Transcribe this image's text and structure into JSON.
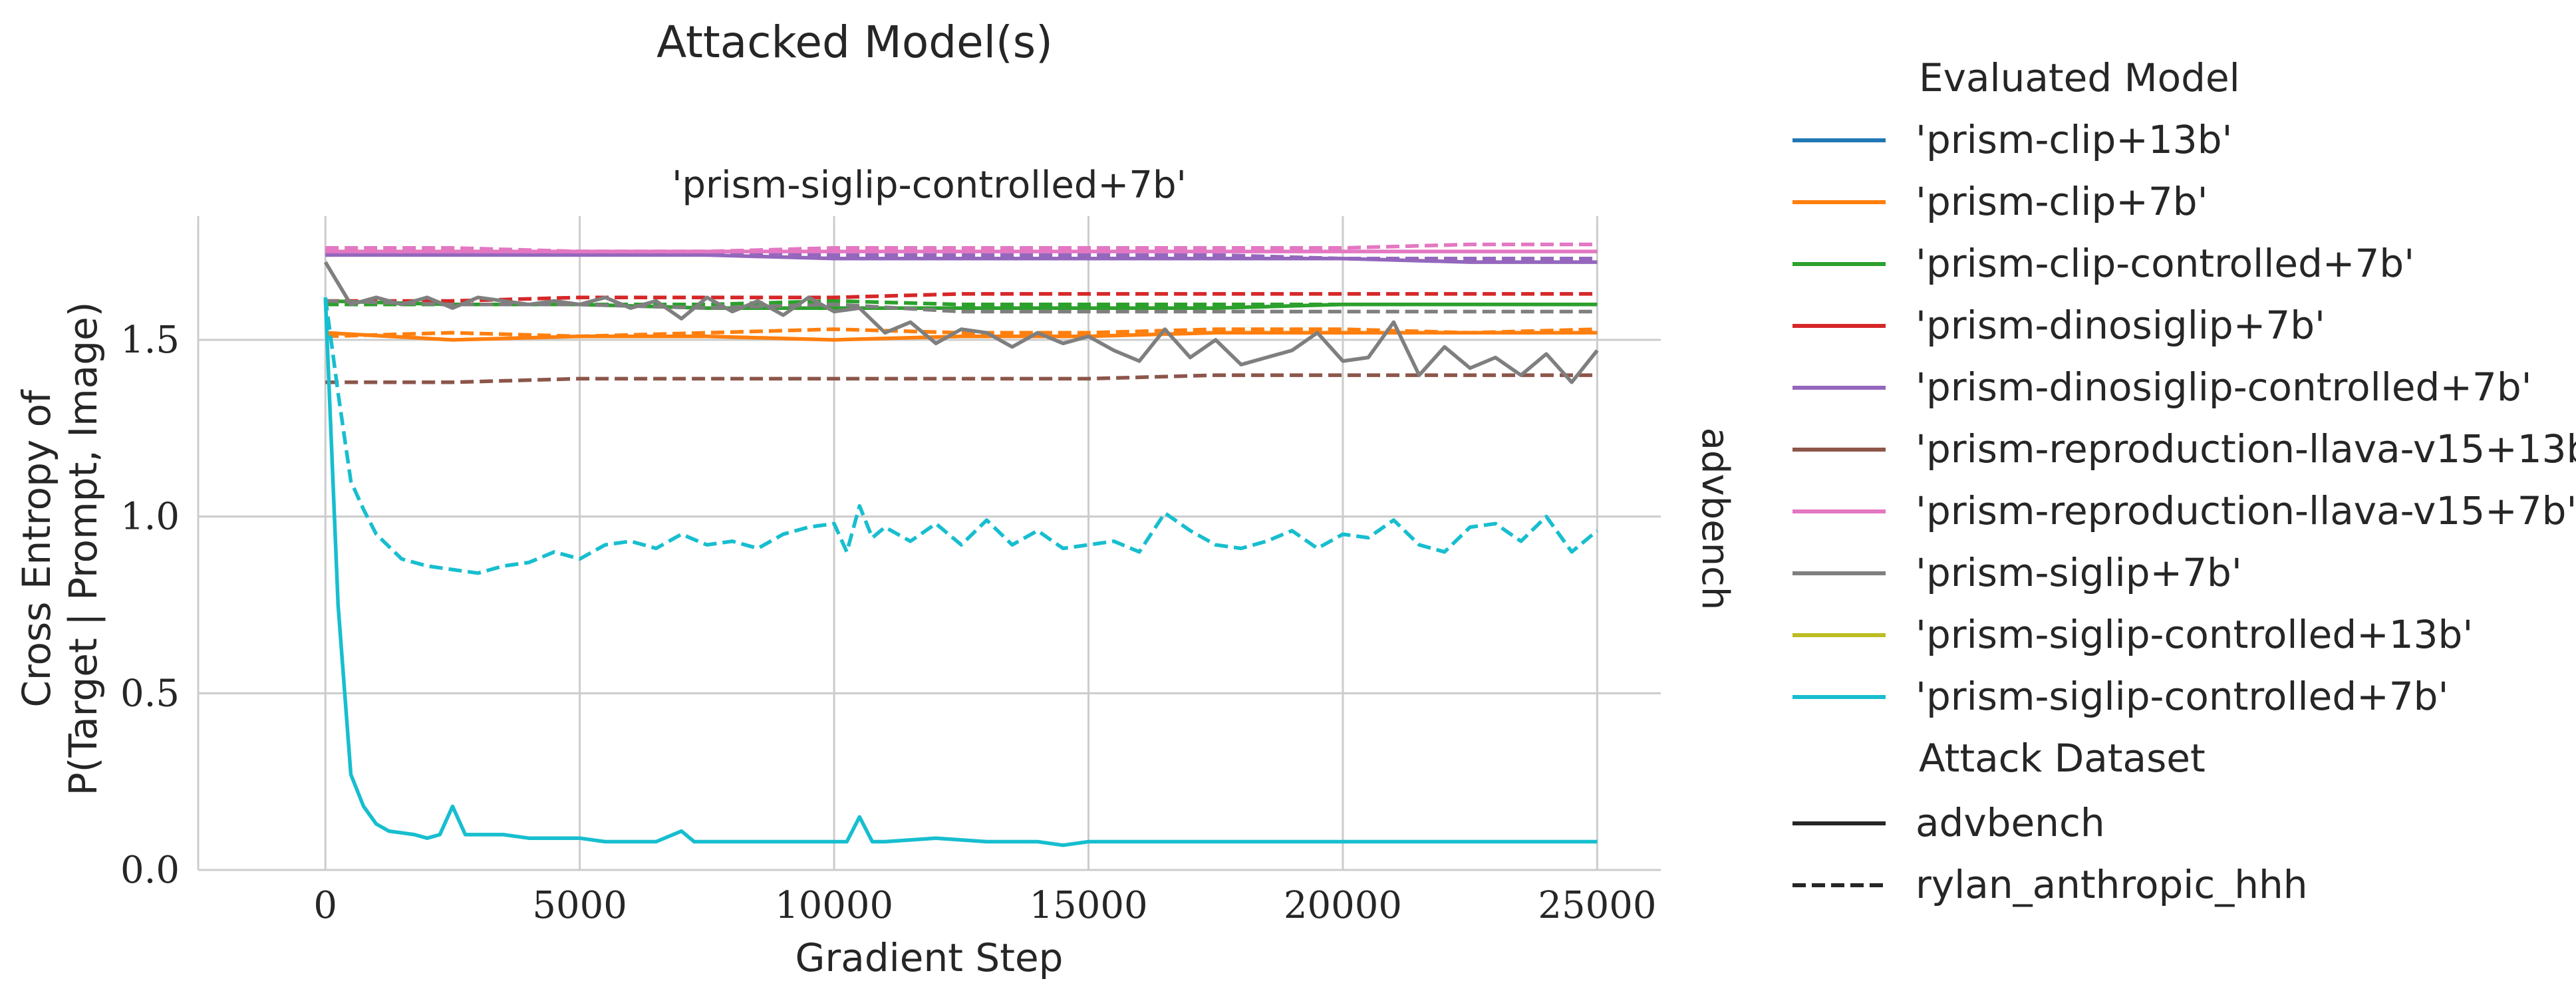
{
  "figure": {
    "suptitle": "Attacked Model(s)",
    "facet_title": "'prism-siglip-controlled+7b'",
    "row_label": "advbench"
  },
  "legend": {
    "hue_title": "Evaluated Model",
    "style_title": "Attack Dataset",
    "style_entries": [
      {
        "label": "advbench",
        "dash": "solid"
      },
      {
        "label": "rylan_anthropic_hhh",
        "dash": "dashed"
      }
    ]
  },
  "chart_data": {
    "type": "line",
    "xlabel": "Gradient Step",
    "ylabel_lines": [
      "Cross Entropy of",
      "P(Target | Prompt, Image)"
    ],
    "xlim": [
      -2500,
      26250
    ],
    "ylim": [
      0,
      1.85
    ],
    "xticks": [
      0,
      5000,
      10000,
      15000,
      20000,
      25000
    ],
    "yticks": [
      0.0,
      0.5,
      1.0,
      1.5
    ],
    "grid": true,
    "legend_position": "right",
    "models": [
      {
        "name": "'prism-clip+13b'",
        "color": "#1f77b4"
      },
      {
        "name": "'prism-clip+7b'",
        "color": "#ff7f0e"
      },
      {
        "name": "'prism-clip-controlled+7b'",
        "color": "#2ca02c"
      },
      {
        "name": "'prism-dinosiglip+7b'",
        "color": "#d62728"
      },
      {
        "name": "'prism-dinosiglip-controlled+7b'",
        "color": "#9467bd"
      },
      {
        "name": "'prism-reproduction-llava-v15+13b'",
        "color": "#8c564b"
      },
      {
        "name": "'prism-reproduction-llava-v15+7b'",
        "color": "#e377c2"
      },
      {
        "name": "'prism-siglip+7b'",
        "color": "#7f7f7f"
      },
      {
        "name": "'prism-siglip-controlled+13b'",
        "color": "#bcbd22"
      },
      {
        "name": "'prism-siglip-controlled+7b'",
        "color": "#17becf"
      }
    ],
    "series": [
      {
        "model": "'prism-clip+7b'",
        "dataset": "advbench",
        "x": [
          0,
          2500,
          5000,
          7500,
          10000,
          12500,
          15000,
          17500,
          20000,
          22500,
          25000
        ],
        "y": [
          1.52,
          1.5,
          1.51,
          1.51,
          1.5,
          1.51,
          1.51,
          1.52,
          1.52,
          1.52,
          1.52
        ]
      },
      {
        "model": "'prism-clip+7b'",
        "dataset": "rylan_anthropic_hhh",
        "x": [
          0,
          2500,
          5000,
          7500,
          10000,
          12500,
          15000,
          17500,
          20000,
          22500,
          25000
        ],
        "y": [
          1.51,
          1.52,
          1.51,
          1.52,
          1.53,
          1.52,
          1.52,
          1.53,
          1.53,
          1.52,
          1.53
        ]
      },
      {
        "model": "'prism-clip-controlled+7b'",
        "dataset": "advbench",
        "x": [
          0,
          2500,
          5000,
          7500,
          10000,
          12500,
          15000,
          17500,
          20000,
          22500,
          25000
        ],
        "y": [
          1.61,
          1.6,
          1.6,
          1.59,
          1.59,
          1.59,
          1.59,
          1.59,
          1.6,
          1.6,
          1.6
        ]
      },
      {
        "model": "'prism-clip-controlled+7b'",
        "dataset": "rylan_anthropic_hhh",
        "x": [
          0,
          2500,
          5000,
          7500,
          10000,
          12500,
          15000,
          17500,
          20000,
          22500,
          25000
        ],
        "y": [
          1.6,
          1.6,
          1.6,
          1.6,
          1.61,
          1.6,
          1.6,
          1.6,
          1.6,
          1.6,
          1.6
        ]
      },
      {
        "model": "'prism-dinosiglip+7b'",
        "dataset": "rylan_anthropic_hhh",
        "x": [
          0,
          2500,
          5000,
          7500,
          10000,
          12500,
          15000,
          17500,
          20000,
          22500,
          25000
        ],
        "y": [
          1.61,
          1.61,
          1.62,
          1.62,
          1.62,
          1.63,
          1.63,
          1.63,
          1.63,
          1.63,
          1.63
        ]
      },
      {
        "model": "'prism-dinosiglip-controlled+7b'",
        "dataset": "advbench",
        "x": [
          0,
          2500,
          5000,
          7500,
          10000,
          12500,
          15000,
          17500,
          20000,
          22500,
          25000
        ],
        "y": [
          1.74,
          1.74,
          1.74,
          1.74,
          1.73,
          1.73,
          1.73,
          1.73,
          1.73,
          1.72,
          1.72
        ]
      },
      {
        "model": "'prism-dinosiglip-controlled+7b'",
        "dataset": "rylan_anthropic_hhh",
        "x": [
          0,
          2500,
          5000,
          7500,
          10000,
          12500,
          15000,
          17500,
          20000,
          22500,
          25000
        ],
        "y": [
          1.75,
          1.75,
          1.75,
          1.75,
          1.74,
          1.74,
          1.74,
          1.74,
          1.73,
          1.73,
          1.73
        ]
      },
      {
        "model": "'prism-reproduction-llava-v15+13b'",
        "dataset": "rylan_anthropic_hhh",
        "x": [
          0,
          2500,
          5000,
          7500,
          10000,
          12500,
          15000,
          17500,
          20000,
          22500,
          25000
        ],
        "y": [
          1.38,
          1.38,
          1.39,
          1.39,
          1.39,
          1.39,
          1.39,
          1.4,
          1.4,
          1.4,
          1.4
        ]
      },
      {
        "model": "'prism-reproduction-llava-v15+7b'",
        "dataset": "advbench",
        "x": [
          0,
          2500,
          5000,
          7500,
          10000,
          12500,
          15000,
          17500,
          20000,
          22500,
          25000
        ],
        "y": [
          1.75,
          1.75,
          1.75,
          1.75,
          1.75,
          1.75,
          1.75,
          1.75,
          1.75,
          1.75,
          1.75
        ]
      },
      {
        "model": "'prism-reproduction-llava-v15+7b'",
        "dataset": "rylan_anthropic_hhh",
        "x": [
          0,
          2500,
          5000,
          7500,
          10000,
          12500,
          15000,
          17500,
          20000,
          22500,
          25000
        ],
        "y": [
          1.76,
          1.76,
          1.75,
          1.75,
          1.76,
          1.76,
          1.76,
          1.76,
          1.76,
          1.77,
          1.77
        ]
      },
      {
        "model": "'prism-siglip+7b'",
        "dataset": "advbench",
        "x": [
          0,
          500,
          1000,
          1500,
          2000,
          2500,
          3000,
          3500,
          4000,
          4500,
          5000,
          5500,
          6000,
          6500,
          7000,
          7500,
          8000,
          8500,
          9000,
          9500,
          10000,
          10500,
          11000,
          11500,
          12000,
          12500,
          13000,
          13500,
          14000,
          14500,
          15000,
          15500,
          16000,
          16500,
          17000,
          17500,
          18000,
          18500,
          19000,
          19500,
          20000,
          20500,
          21000,
          21500,
          22000,
          22500,
          23000,
          23500,
          24000,
          24500,
          25000
        ],
        "y": [
          1.72,
          1.6,
          1.62,
          1.6,
          1.62,
          1.59,
          1.62,
          1.61,
          1.6,
          1.61,
          1.6,
          1.62,
          1.59,
          1.61,
          1.56,
          1.62,
          1.58,
          1.61,
          1.57,
          1.62,
          1.58,
          1.59,
          1.52,
          1.55,
          1.49,
          1.53,
          1.52,
          1.48,
          1.52,
          1.49,
          1.51,
          1.47,
          1.44,
          1.53,
          1.45,
          1.5,
          1.43,
          1.45,
          1.47,
          1.52,
          1.44,
          1.45,
          1.55,
          1.4,
          1.48,
          1.42,
          1.45,
          1.4,
          1.46,
          1.38,
          1.47
        ]
      },
      {
        "model": "'prism-siglip+7b'",
        "dataset": "rylan_anthropic_hhh",
        "x": [
          0,
          2500,
          5000,
          7500,
          10000,
          12500,
          15000,
          17500,
          20000,
          22500,
          25000
        ],
        "y": [
          1.61,
          1.6,
          1.6,
          1.59,
          1.6,
          1.58,
          1.58,
          1.58,
          1.58,
          1.58,
          1.58
        ]
      },
      {
        "model": "'prism-siglip-controlled+7b'",
        "dataset": "advbench",
        "x": [
          0,
          250,
          500,
          750,
          1000,
          1250,
          1500,
          1750,
          2000,
          2250,
          2500,
          2750,
          3000,
          3500,
          4000,
          4500,
          5000,
          5500,
          6000,
          6500,
          7000,
          7250,
          7500,
          8000,
          9000,
          10000,
          10250,
          10500,
          10750,
          11000,
          12000,
          13000,
          14000,
          14500,
          15000,
          16000,
          17000,
          18000,
          19000,
          20000,
          21000,
          22000,
          23000,
          24000,
          25000
        ],
        "y": [
          1.62,
          0.75,
          0.27,
          0.18,
          0.13,
          0.11,
          0.105,
          0.1,
          0.09,
          0.1,
          0.18,
          0.1,
          0.1,
          0.1,
          0.09,
          0.09,
          0.09,
          0.08,
          0.08,
          0.08,
          0.11,
          0.08,
          0.08,
          0.08,
          0.08,
          0.08,
          0.08,
          0.15,
          0.08,
          0.08,
          0.09,
          0.08,
          0.08,
          0.07,
          0.08,
          0.08,
          0.08,
          0.08,
          0.08,
          0.08,
          0.08,
          0.08,
          0.08,
          0.08,
          0.08
        ]
      },
      {
        "model": "'prism-siglip-controlled+7b'",
        "dataset": "rylan_anthropic_hhh",
        "x": [
          0,
          250,
          500,
          750,
          1000,
          1500,
          2000,
          2500,
          3000,
          3500,
          4000,
          4500,
          5000,
          5500,
          6000,
          6500,
          7000,
          7500,
          8000,
          8500,
          9000,
          9500,
          10000,
          10250,
          10500,
          10750,
          11000,
          11500,
          12000,
          12500,
          13000,
          13500,
          14000,
          14500,
          15000,
          15500,
          16000,
          16500,
          17000,
          17500,
          18000,
          18500,
          19000,
          19500,
          20000,
          20500,
          21000,
          21500,
          22000,
          22500,
          23000,
          23500,
          24000,
          24500,
          25000
        ],
        "y": [
          1.62,
          1.35,
          1.1,
          1.02,
          0.95,
          0.88,
          0.86,
          0.85,
          0.84,
          0.86,
          0.87,
          0.9,
          0.88,
          0.92,
          0.93,
          0.91,
          0.95,
          0.92,
          0.93,
          0.91,
          0.95,
          0.97,
          0.98,
          0.9,
          1.03,
          0.94,
          0.97,
          0.93,
          0.98,
          0.92,
          0.99,
          0.92,
          0.96,
          0.91,
          0.92,
          0.93,
          0.9,
          1.01,
          0.96,
          0.92,
          0.91,
          0.93,
          0.96,
          0.91,
          0.95,
          0.94,
          0.99,
          0.92,
          0.9,
          0.97,
          0.98,
          0.93,
          1.0,
          0.9,
          0.96
        ]
      }
    ]
  }
}
